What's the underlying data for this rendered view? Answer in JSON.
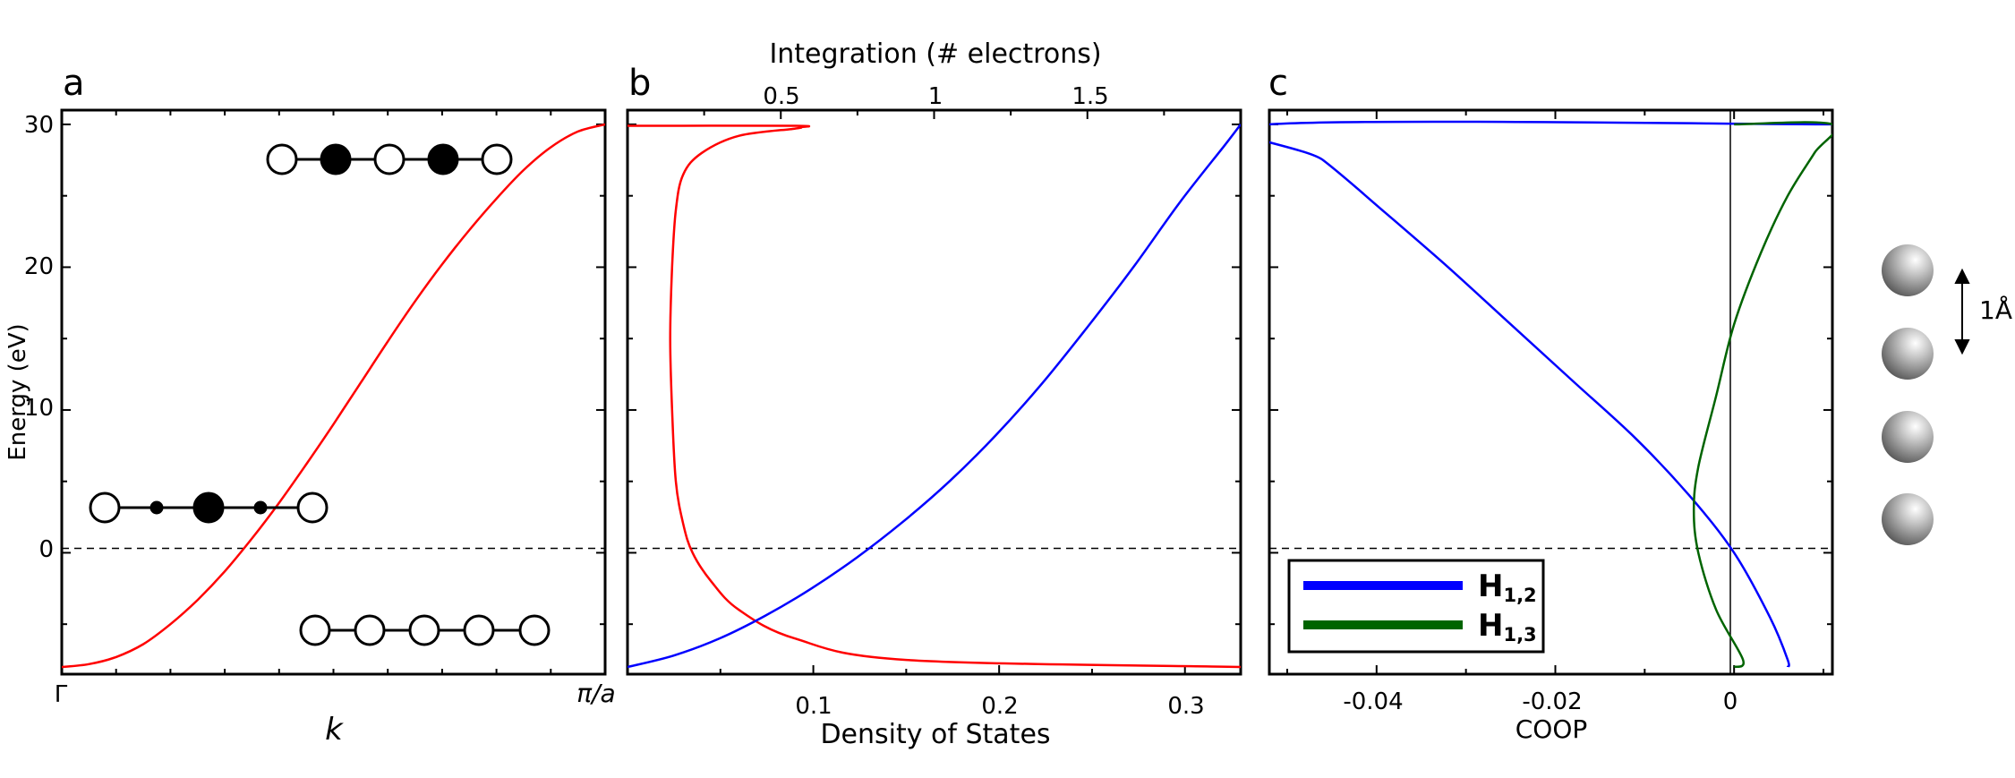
{
  "chart_data": [
    {
      "panel": "a",
      "type": "line",
      "ylabel": "Energy (eV)",
      "xlabel": "k",
      "xticklabels": [
        "Γ",
        "π/a"
      ],
      "ylim": [
        -8.5,
        31
      ],
      "yticks": [
        0,
        10,
        20,
        30
      ],
      "dashed_line_y": 0,
      "series": [
        {
          "color": "#ff0000",
          "x": [
            0,
            0.05,
            0.1,
            0.15,
            0.2,
            0.25,
            0.3,
            0.35,
            0.4,
            0.45,
            0.5,
            0.55,
            0.6,
            0.65,
            0.7,
            0.75,
            0.8,
            0.85,
            0.9,
            0.95,
            1
          ],
          "y": [
            -8,
            -7.8,
            -7.3,
            -6.4,
            -5.0,
            -3.3,
            -1.3,
            1.0,
            3.5,
            6.2,
            9.0,
            11.9,
            14.8,
            17.6,
            20.2,
            22.6,
            24.8,
            26.8,
            28.4,
            29.5,
            30
          ]
        }
      ]
    },
    {
      "panel": "b",
      "type": "line",
      "xlabel": "Density of States",
      "x2label": "Integration (# electrons)",
      "xlim": [
        0,
        0.33
      ],
      "xticks": [
        0.1,
        0.2,
        0.3
      ],
      "x2lim": [
        0,
        2.0
      ],
      "x2ticks": [
        0.5,
        1,
        1.5
      ],
      "ylim": [
        -8.5,
        31
      ],
      "dashed_line_y": 0,
      "series": [
        {
          "color": "#ff0000",
          "axis": "bottom",
          "x": [
            0.33,
            0.15,
            0.09,
            0.06,
            0.045,
            0.035,
            0.03,
            0.026,
            0.024,
            0.023,
            0.024,
            0.026,
            0.03,
            0.04,
            0.06,
            0.09,
            0.093,
            0.09,
            0.0
          ],
          "y": [
            -8.0,
            -7.5,
            -6.0,
            -4.0,
            -2.0,
            0,
            2,
            5,
            10,
            15,
            20,
            24,
            26.5,
            28,
            29.2,
            29.7,
            29.8,
            29.9,
            29.9
          ]
        },
        {
          "color": "#0000ff",
          "axis": "top",
          "x": [
            0.0,
            0.15,
            0.3,
            0.45,
            0.6,
            0.75,
            0.9,
            1.05,
            1.2,
            1.35,
            1.5,
            1.65,
            1.8,
            1.95,
            2.0
          ],
          "y": [
            -8.0,
            -7.2,
            -6.0,
            -4.4,
            -2.5,
            -0.3,
            2.2,
            5.0,
            8.2,
            11.8,
            15.8,
            20.0,
            24.5,
            28.6,
            30.0
          ]
        }
      ]
    },
    {
      "panel": "c",
      "type": "line",
      "xlabel": "COOP",
      "xlim": [
        -0.052,
        0.011
      ],
      "xticks": [
        -0.04,
        -0.02,
        0
      ],
      "ylim": [
        -8.5,
        31
      ],
      "dashed_line_y": 0,
      "vertical_line_x": 0,
      "legend": {
        "position": "lower-left",
        "entries": [
          "H1,2",
          "H1,3"
        ]
      },
      "series": [
        {
          "name": "H1,2",
          "color": "#0000ff",
          "x": [
            0.006,
            0.006,
            0.004,
            0.0,
            -0.005,
            -0.011,
            -0.018,
            -0.025,
            -0.032,
            -0.039,
            -0.046,
            -0.052,
            0.011
          ],
          "y": [
            -8.0,
            -7.5,
            -4.5,
            0.0,
            4.0,
            8.0,
            12.0,
            16.0,
            20.0,
            23.8,
            27.5,
            30.0,
            30.0
          ]
        },
        {
          "name": "H1,3",
          "color": "#006400",
          "x": [
            0.0,
            0.001,
            -0.002,
            -0.004,
            -0.0045,
            -0.004,
            -0.002,
            0.0,
            0.003,
            0.006,
            0.009,
            0.011,
            0.0
          ],
          "y": [
            -8.0,
            -7.5,
            -4.0,
            0.0,
            3.0,
            6.0,
            11.0,
            16.0,
            21.0,
            25.0,
            28.0,
            30.0,
            30.0
          ]
        }
      ]
    }
  ],
  "panel_letters": [
    "a",
    "b",
    "c"
  ],
  "legend_text": {
    "h12_main": "H",
    "h12_sub": "1,2",
    "h13_main": "H",
    "h13_sub": "1,3"
  },
  "ytick_labels": [
    "0",
    "10",
    "20",
    "30"
  ],
  "xtick_labels_b": [
    "0.1",
    "0.2",
    "0.3"
  ],
  "x2tick_labels_b": [
    "0.5",
    "1",
    "1.5"
  ],
  "xtick_labels_c": [
    "-0.04",
    "-0.02",
    "0"
  ],
  "scale_label": "1Å"
}
